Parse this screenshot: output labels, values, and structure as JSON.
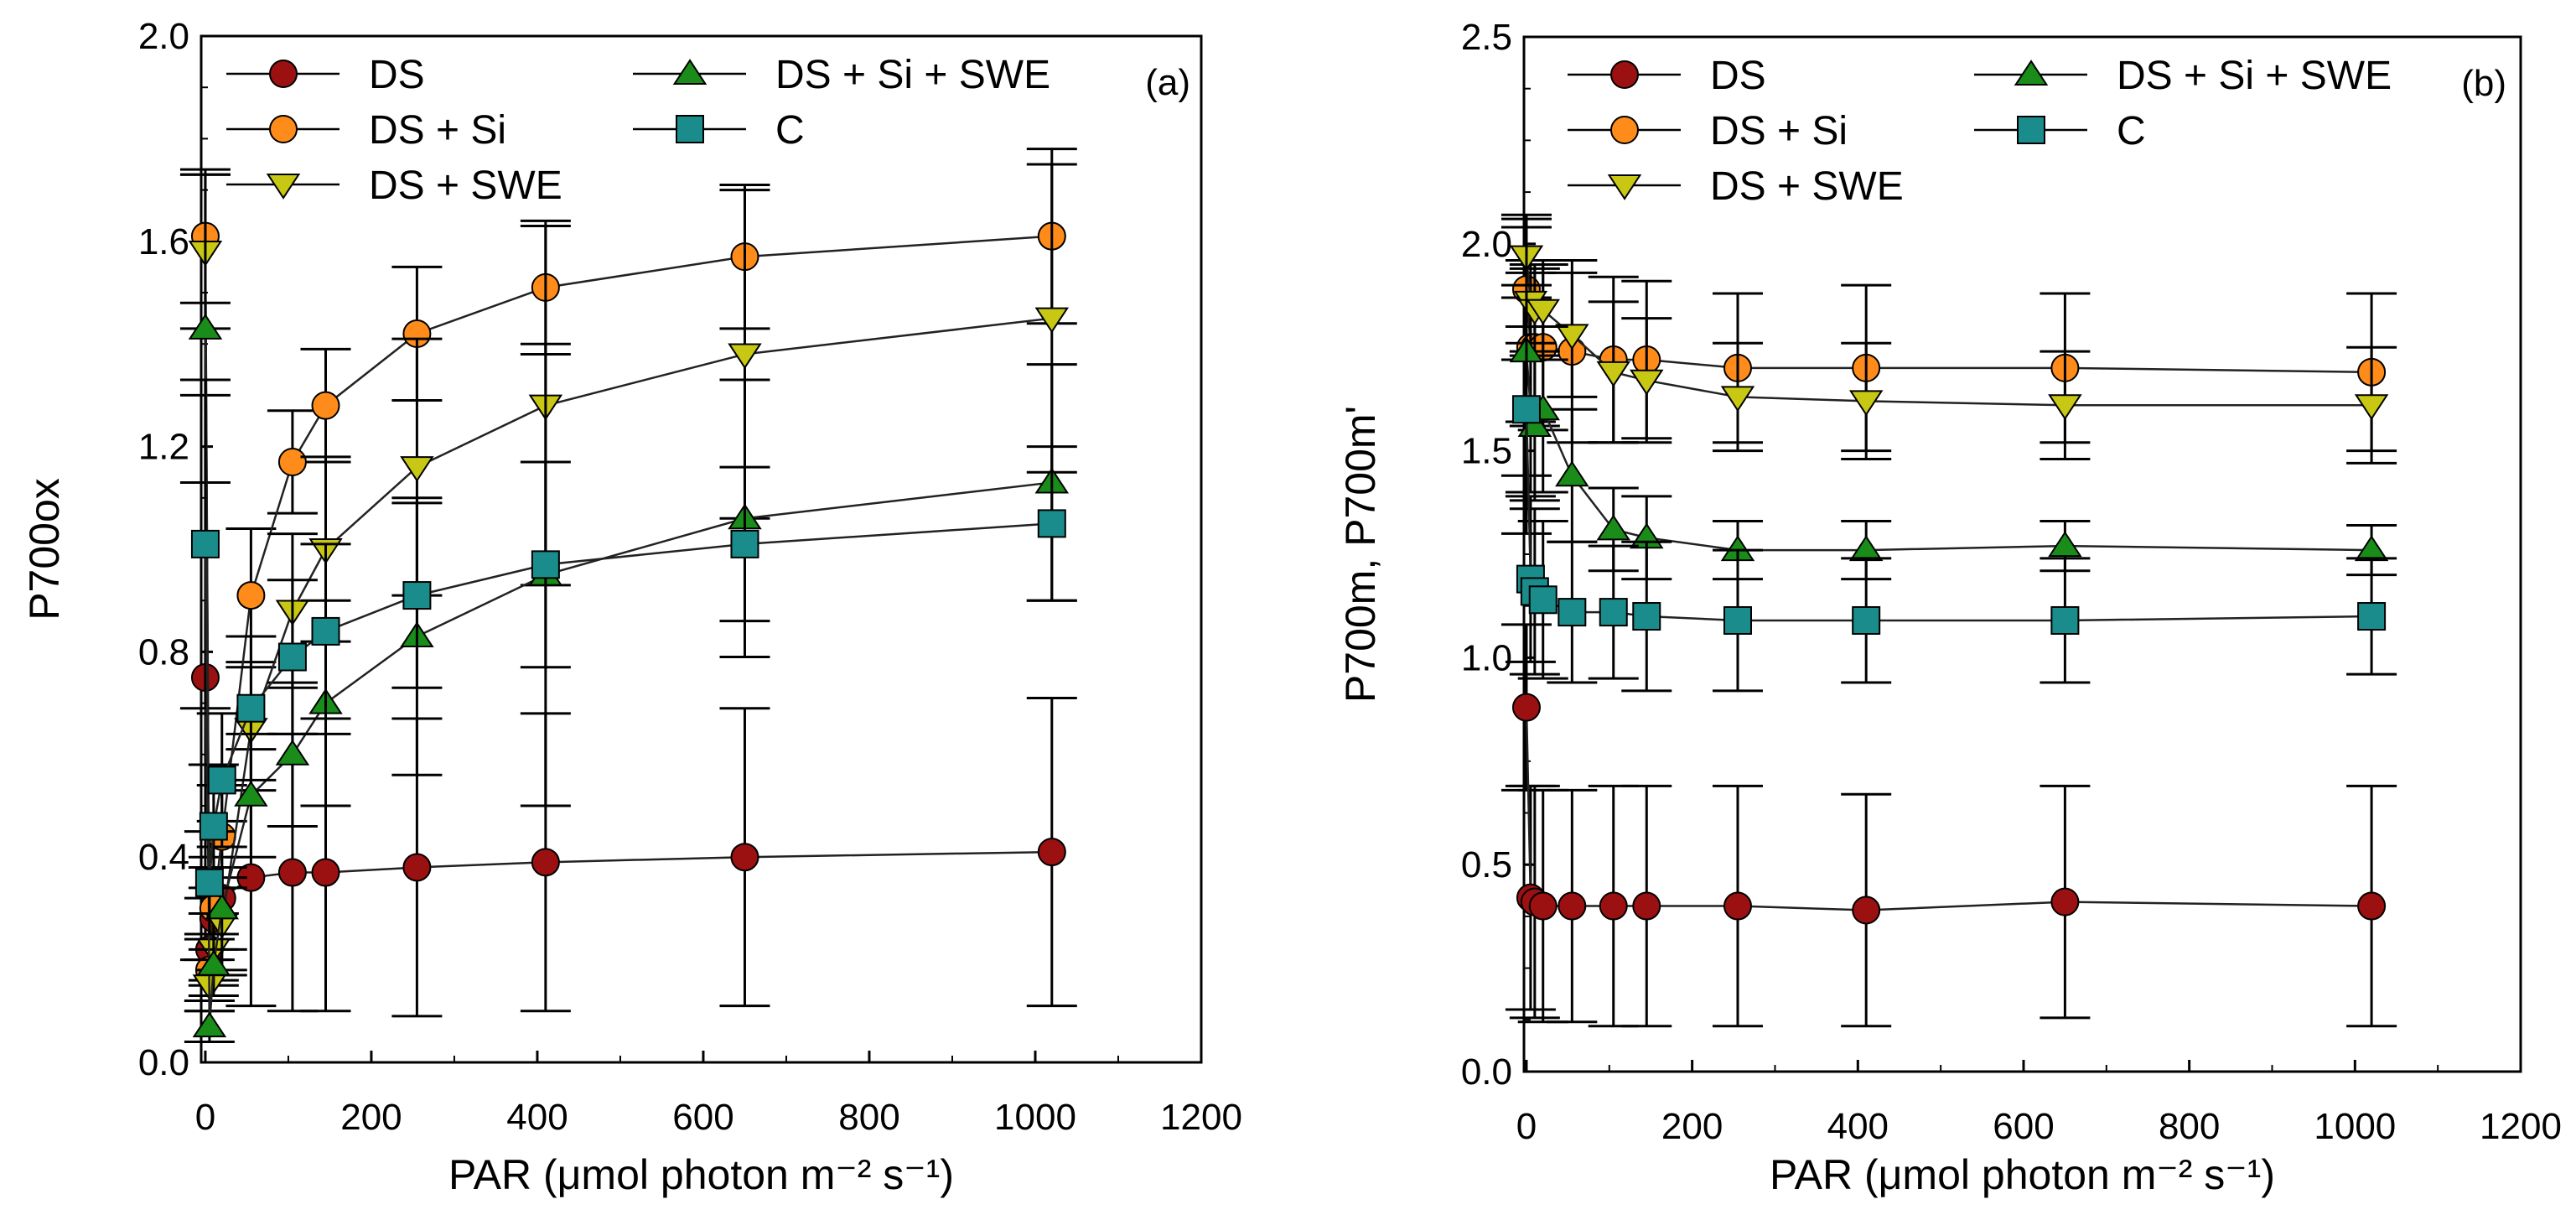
{
  "chart_data": [
    {
      "type": "line",
      "panel_label": "(a)",
      "xlabel": "PAR (μmol photon m⁻² s⁻¹)",
      "ylabel": "P700ox",
      "xlim": [
        -5,
        1200
      ],
      "ylim": [
        0,
        2.0
      ],
      "xticks": [
        0,
        200,
        400,
        600,
        800,
        1000,
        1200
      ],
      "yticks": [
        0.0,
        0.4,
        0.8,
        1.2,
        1.6,
        2.0
      ],
      "ytick_labels": [
        "0.0",
        "0.4",
        "0.8",
        "1.2",
        "1.6",
        "2.0"
      ],
      "grid": false,
      "legend_position": "top",
      "x": [
        0,
        5,
        10,
        20,
        55,
        105,
        145,
        255,
        410,
        650,
        1020
      ],
      "series": [
        {
          "name": "DS",
          "marker": "circle",
          "color": "#9b1111",
          "values": [
            0.75,
            0.22,
            0.28,
            0.32,
            0.36,
            0.37,
            0.37,
            0.38,
            0.39,
            0.4,
            0.41
          ],
          "error": [
            0.55,
            0.1,
            0.12,
            0.15,
            0.25,
            0.27,
            0.27,
            0.29,
            0.29,
            0.29,
            0.3
          ]
        },
        {
          "name": "DS + Si",
          "marker": "circle",
          "color": "#ff8c1a",
          "values": [
            1.61,
            0.18,
            0.3,
            0.44,
            0.91,
            1.17,
            1.28,
            1.42,
            1.51,
            1.57,
            1.61
          ],
          "error": [
            0.13,
            0.06,
            0.08,
            0.1,
            0.13,
            0.1,
            0.11,
            0.13,
            0.13,
            0.14,
            0.17
          ]
        },
        {
          "name": "DS + SWE",
          "marker": "triangle-down",
          "color": "#c8c814",
          "values": [
            1.58,
            0.15,
            0.22,
            0.27,
            0.65,
            0.88,
            1.0,
            1.16,
            1.28,
            1.38,
            1.45
          ],
          "error": [
            0.15,
            0.05,
            0.07,
            0.09,
            0.12,
            0.15,
            0.18,
            0.25,
            0.35,
            0.32,
            0.3
          ]
        },
        {
          "name": "DS + Si + SWE",
          "marker": "triangle-up",
          "color": "#1a8c1a",
          "values": [
            1.43,
            0.07,
            0.19,
            0.3,
            0.52,
            0.6,
            0.7,
            0.83,
            0.95,
            1.06,
            1.13
          ],
          "error": [
            0.3,
            0.03,
            0.06,
            0.08,
            0.12,
            0.14,
            0.2,
            0.27,
            0.45,
            0.27,
            0.23
          ]
        },
        {
          "name": "C",
          "marker": "square",
          "color": "#1a8c8c",
          "values": [
            1.01,
            0.35,
            0.46,
            0.55,
            0.69,
            0.79,
            0.84,
            0.91,
            0.97,
            1.01,
            1.05
          ],
          "error": [
            0.32,
            0.1,
            0.12,
            0.13,
            0.14,
            0.15,
            0.17,
            0.18,
            0.2,
            0.15,
            0.15
          ]
        }
      ]
    },
    {
      "type": "line",
      "panel_label": "(b)",
      "xlabel": "PAR (μmol photon m⁻² s⁻¹)",
      "ylabel": "P700m, P700m'",
      "xlim": [
        -3,
        1200
      ],
      "ylim": [
        0,
        2.5
      ],
      "xticks": [
        0,
        200,
        400,
        600,
        800,
        1000,
        1200
      ],
      "yticks": [
        0.0,
        0.5,
        1.0,
        1.5,
        2.0,
        2.5
      ],
      "ytick_labels": [
        "0.0",
        "0.5",
        "1.0",
        "1.5",
        "2.0",
        "2.5"
      ],
      "grid": false,
      "legend_position": "top",
      "x": [
        0,
        5,
        10,
        20,
        55,
        105,
        145,
        255,
        410,
        650,
        1020
      ],
      "series": [
        {
          "name": "DS",
          "marker": "circle",
          "color": "#9b1111",
          "values": [
            0.88,
            0.42,
            0.41,
            0.4,
            0.4,
            0.4,
            0.4,
            0.4,
            0.39,
            0.41,
            0.4
          ],
          "error": [
            0.2,
            0.27,
            0.28,
            0.28,
            0.28,
            0.29,
            0.29,
            0.29,
            0.28,
            0.28,
            0.29
          ]
        },
        {
          "name": "DS + Si",
          "marker": "circle",
          "color": "#ff8c1a",
          "values": [
            1.89,
            1.75,
            1.75,
            1.75,
            1.74,
            1.72,
            1.72,
            1.7,
            1.7,
            1.7,
            1.69
          ],
          "error": [
            0.17,
            0.18,
            0.19,
            0.2,
            0.22,
            0.2,
            0.19,
            0.18,
            0.2,
            0.18,
            0.19
          ]
        },
        {
          "name": "DS + SWE",
          "marker": "triangle-down",
          "color": "#c8c814",
          "values": [
            1.97,
            1.86,
            1.84,
            1.84,
            1.78,
            1.69,
            1.67,
            1.63,
            1.62,
            1.61,
            1.61
          ],
          "error": [
            0.1,
            0.1,
            0.11,
            0.12,
            0.15,
            0.17,
            0.15,
            0.13,
            0.14,
            0.13,
            0.14
          ]
        },
        {
          "name": "DS + Si + SWE",
          "marker": "triangle-up",
          "color": "#1a8c1a",
          "values": [
            1.74,
            1.6,
            1.56,
            1.6,
            1.44,
            1.31,
            1.29,
            1.26,
            1.26,
            1.27,
            1.26
          ],
          "error": [
            0.3,
            0.2,
            0.18,
            0.2,
            0.16,
            0.1,
            0.1,
            0.07,
            0.07,
            0.06,
            0.06
          ]
        },
        {
          "name": "C",
          "marker": "square",
          "color": "#1a8c8c",
          "values": [
            1.6,
            1.19,
            1.16,
            1.14,
            1.11,
            1.11,
            1.1,
            1.09,
            1.09,
            1.09,
            1.1
          ],
          "error": [
            0.3,
            0.2,
            0.2,
            0.19,
            0.17,
            0.16,
            0.18,
            0.17,
            0.15,
            0.15,
            0.14
          ]
        }
      ]
    }
  ]
}
